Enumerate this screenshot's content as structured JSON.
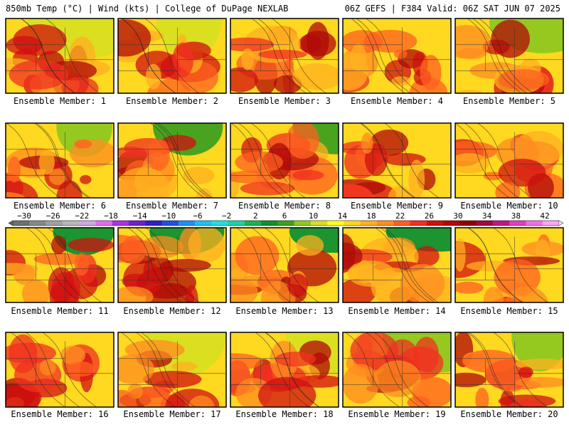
{
  "header": {
    "left": "850mb Temp (°C) | Wind (kts) | College of DuPage NEXLAB",
    "right": "06Z GEFS | F384 Valid: 06Z SAT JUN 07 2025"
  },
  "chart_data": {
    "type": "heatmap",
    "title": "850mb Temp (°C) | Wind (kts)",
    "colorbar": {
      "ticks": [
        -30,
        -26,
        -22,
        -18,
        -14,
        -10,
        -6,
        -2,
        2,
        6,
        10,
        14,
        18,
        22,
        26,
        30,
        34,
        38,
        42
      ],
      "colors": [
        "#707070",
        "#888888",
        "#a0a0a0",
        "#b8b8b8",
        "#d0a8e0",
        "#e070f0",
        "#b030e0",
        "#7020d0",
        "#3020c0",
        "#2050e0",
        "#2090f0",
        "#20c0f0",
        "#20e0e0",
        "#20d0a0",
        "#20b050",
        "#109030",
        "#40a020",
        "#90c820",
        "#d8e020",
        "#ffff20",
        "#ffd820",
        "#ffb020",
        "#ff8c20",
        "#ff6020",
        "#f03020",
        "#d01010",
        "#b00808",
        "#900000",
        "#a00840",
        "#c01880",
        "#e040c0",
        "#f070e0",
        "#f8a8f0"
      ]
    },
    "panels": [
      {
        "member": 1,
        "label": "Ensemble Member: 1"
      },
      {
        "member": 2,
        "label": "Ensemble Member: 2"
      },
      {
        "member": 3,
        "label": "Ensemble Member: 3"
      },
      {
        "member": 4,
        "label": "Ensemble Member: 4"
      },
      {
        "member": 5,
        "label": "Ensemble Member: 5"
      },
      {
        "member": 6,
        "label": "Ensemble Member: 6"
      },
      {
        "member": 7,
        "label": "Ensemble Member: 7"
      },
      {
        "member": 8,
        "label": "Ensemble Member: 8"
      },
      {
        "member": 9,
        "label": "Ensemble Member: 9"
      },
      {
        "member": 10,
        "label": "Ensemble Member: 10"
      },
      {
        "member": 11,
        "label": "Ensemble Member: 11"
      },
      {
        "member": 12,
        "label": "Ensemble Member: 12"
      },
      {
        "member": 13,
        "label": "Ensemble Member: 13"
      },
      {
        "member": 14,
        "label": "Ensemble Member: 14"
      },
      {
        "member": 15,
        "label": "Ensemble Member: 15"
      },
      {
        "member": 16,
        "label": "Ensemble Member: 16"
      },
      {
        "member": 17,
        "label": "Ensemble Member: 17"
      },
      {
        "member": 18,
        "label": "Ensemble Member: 18"
      },
      {
        "member": 19,
        "label": "Ensemble Member: 19"
      },
      {
        "member": 20,
        "label": "Ensemble Member: 20"
      }
    ]
  }
}
